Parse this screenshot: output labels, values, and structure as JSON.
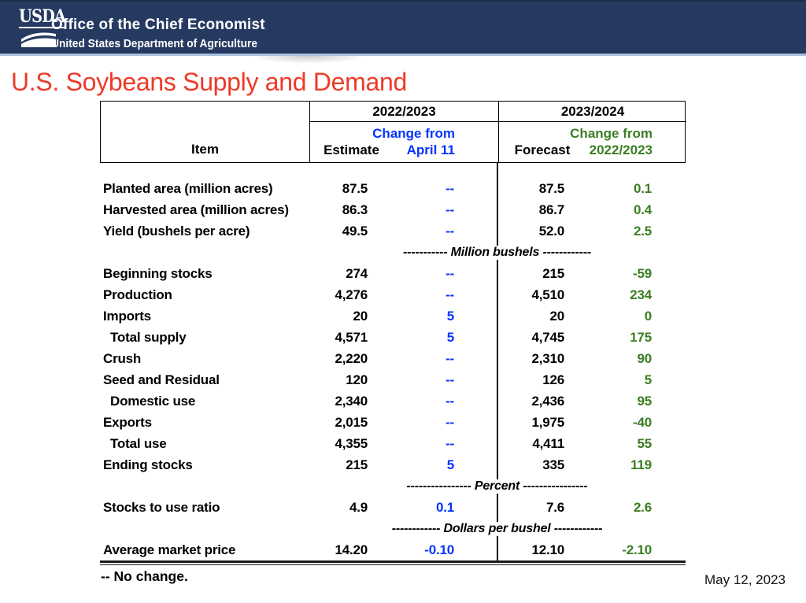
{
  "colors": {
    "band_navy": "#263a61",
    "band_rule_blue": "#a9c1dd",
    "title_red": "#ee3a28",
    "change_blue": "#0433ff",
    "change_green": "#3c7e22",
    "text_black": "#000000"
  },
  "usda_header": {
    "logo_text": "USDA",
    "office": "Office of the Chief Economist",
    "department": "United States Department of Agriculture"
  },
  "slide_title": "U.S. Soybeans Supply and Demand",
  "table": {
    "item_header": "Item",
    "groups": [
      {
        "year": "2022/2023",
        "value_header": "Estimate",
        "change_line1": "Change from",
        "change_line2": "April 11"
      },
      {
        "year": "2023/2024",
        "value_header": "Forecast",
        "change_line1": "Change from",
        "change_line2": "2022/2023"
      }
    ],
    "rows": [
      {
        "label": "Planted area (million acres)",
        "indent": false,
        "estimate": "87.5",
        "change1": "--",
        "forecast": "87.5",
        "change2": "0.1"
      },
      {
        "label": "Harvested area (million acres)",
        "indent": false,
        "estimate": "86.3",
        "change1": "--",
        "forecast": "86.7",
        "change2": "0.4"
      },
      {
        "label": "Yield (bushels per acre)",
        "indent": false,
        "estimate": "49.5",
        "change1": "--",
        "forecast": "52.0",
        "change2": "2.5"
      },
      {
        "separator": "----------- Million bushels ------------"
      },
      {
        "label": "Beginning stocks",
        "indent": false,
        "estimate": "274",
        "change1": "--",
        "forecast": "215",
        "change2": "-59"
      },
      {
        "label": "Production",
        "indent": false,
        "estimate": "4,276",
        "change1": "--",
        "forecast": "4,510",
        "change2": "234"
      },
      {
        "label": "Imports",
        "indent": false,
        "estimate": "20",
        "change1": "5",
        "forecast": "20",
        "change2": "0"
      },
      {
        "label": "Total supply",
        "indent": true,
        "estimate": "4,571",
        "change1": "5",
        "forecast": "4,745",
        "change2": "175"
      },
      {
        "label": "Crush",
        "indent": false,
        "estimate": "2,220",
        "change1": "--",
        "forecast": "2,310",
        "change2": "90"
      },
      {
        "label": "Seed and Residual",
        "indent": false,
        "estimate": "120",
        "change1": "--",
        "forecast": "126",
        "change2": "5"
      },
      {
        "label": "Domestic use",
        "indent": true,
        "estimate": "2,340",
        "change1": "--",
        "forecast": "2,436",
        "change2": "95"
      },
      {
        "label": "Exports",
        "indent": false,
        "estimate": "2,015",
        "change1": "--",
        "forecast": "1,975",
        "change2": "-40"
      },
      {
        "label": "Total use",
        "indent": true,
        "estimate": "4,355",
        "change1": "--",
        "forecast": "4,411",
        "change2": "55"
      },
      {
        "label": "Ending stocks",
        "indent": false,
        "estimate": "215",
        "change1": "5",
        "forecast": "335",
        "change2": "119"
      },
      {
        "separator": "---------------- Percent ----------------"
      },
      {
        "label": "Stocks to use ratio",
        "indent": false,
        "estimate": "4.9",
        "change1": "0.1",
        "forecast": "7.6",
        "change2": "2.6"
      },
      {
        "separator": "------------ Dollars per bushel ------------"
      },
      {
        "label": "Average market price",
        "indent": false,
        "estimate": "14.20",
        "change1": "-0.10",
        "forecast": "12.10",
        "change2": "-2.10"
      }
    ]
  },
  "footnote": "-- No change.",
  "date": "May 12, 2023"
}
